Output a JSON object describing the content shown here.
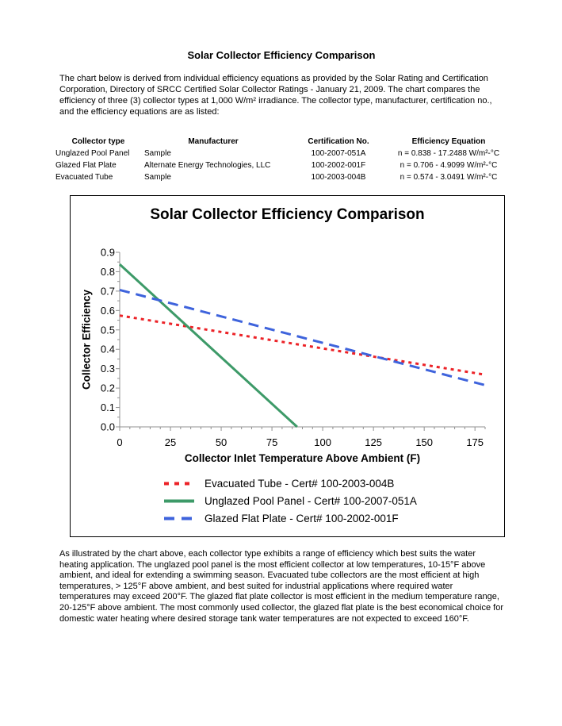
{
  "document": {
    "title": "Solar Collector Efficiency Comparison",
    "intro": "The chart below is derived from individual efficiency equations as provided by the Solar Rating and Certification Corporation, Directory of SRCC Certified Solar Collector Ratings - January 21, 2009. The chart compares the efficiency of three (3) collector types at 1,000 W/m² irradiance. The collector type, manufacturer, certification no., and the efficiency equations are as listed:",
    "closing": "As illustrated by the chart above, each collector type exhibits a range of efficiency which best suits the water heating application. The unglazed pool panel is the most efficient collector at low temperatures, 10-15°F above ambient, and ideal for extending a swimming season. Evacuated tube collectors are the most efficient at high temperatures, > 125°F above ambient, and best suited for industrial applications where required water temperatures may exceed 200°F. The glazed flat plate collector is most efficient in the medium temperature range, 20-125°F above ambient. The most commonly used collector, the glazed flat plate is the best economical choice for domestic water heating where desired storage tank water temperatures are not expected to exceed 160°F."
  },
  "table": {
    "headers": [
      "Collector type",
      "Manufacturer",
      "Certification No.",
      "Efficiency Equation"
    ],
    "rows": [
      [
        "Unglazed Pool Panel",
        "Sample",
        "100-2007-051A",
        "n = 0.838 - 17.2488 W/m²-°C"
      ],
      [
        "Glazed Flat Plate",
        "Alternate Energy Technologies, LLC",
        "100-2002-001F",
        "n = 0.706 - 4.9099 W/m²-°C"
      ],
      [
        "Evacuated Tube",
        "Sample",
        "100-2003-004B",
        "n = 0.574 - 3.0491 W/m²-°C"
      ]
    ]
  },
  "chart_data": {
    "type": "line",
    "title": "Solar Collector Efficiency Comparison",
    "xlabel": "Collector Inlet Temperature Above Ambient (F)",
    "ylabel": "Collector Efficiency",
    "xlim": [
      0,
      180
    ],
    "ylim": [
      0,
      0.9
    ],
    "x_major_ticks": [
      0,
      25,
      50,
      75,
      100,
      125,
      150,
      175
    ],
    "x_minor_step": 5,
    "y_major_step": 0.1,
    "y_minor_step": 0.05,
    "grid": false,
    "legend_position": "bottom-left",
    "axis_color": "#909090",
    "series": [
      {
        "name": "Evacuated Tube - Cert# 100-2003-004B",
        "color": "#EC2227",
        "style": "dotted",
        "points": [
          [
            0,
            0.574
          ],
          [
            180,
            0.269
          ]
        ]
      },
      {
        "name": "Unglazed Pool Panel - Cert# 100-2007-051A",
        "color": "#3D9A68",
        "style": "solid",
        "points": [
          [
            0,
            0.838
          ],
          [
            87.4,
            0
          ]
        ]
      },
      {
        "name": "Glazed Flat Plate - Cert# 100-2002-001F",
        "color": "#3E63DC",
        "style": "dashed",
        "points": [
          [
            0,
            0.706
          ],
          [
            180,
            0.215
          ]
        ]
      }
    ]
  }
}
